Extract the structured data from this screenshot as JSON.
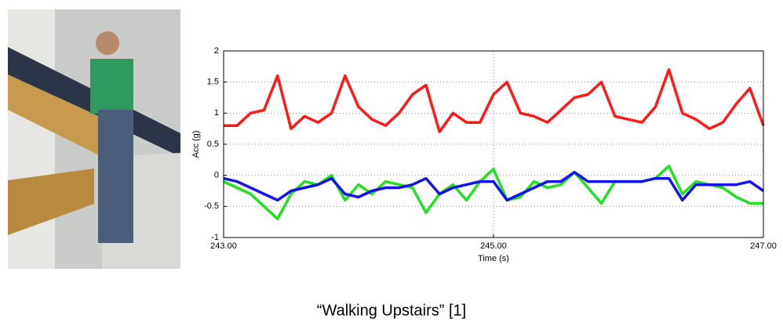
{
  "caption": "“Walking Upstairs” [1]",
  "chart_data": {
    "type": "line",
    "xlabel": "Time (s)",
    "ylabel": "Acc (g)",
    "x": [
      243.0,
      243.1,
      243.2,
      243.3,
      243.4,
      243.5,
      243.6,
      243.7,
      243.8,
      243.9,
      244.0,
      244.1,
      244.2,
      244.3,
      244.4,
      244.5,
      244.6,
      244.7,
      244.8,
      244.9,
      245.0,
      245.1,
      245.2,
      245.3,
      245.4,
      245.5,
      245.6,
      245.7,
      245.8,
      245.9,
      246.0,
      246.1,
      246.2,
      246.3,
      246.4,
      246.5,
      246.6,
      246.7,
      246.8,
      246.9,
      247.0
    ],
    "series": [
      {
        "color": "#ff1a1a",
        "values": [
          0.8,
          0.8,
          1.0,
          1.05,
          1.6,
          0.75,
          0.95,
          0.85,
          1.0,
          1.6,
          1.1,
          0.9,
          0.8,
          1.0,
          1.3,
          1.45,
          0.7,
          1.0,
          0.85,
          0.85,
          1.3,
          1.5,
          1.0,
          0.95,
          0.85,
          1.05,
          1.25,
          1.3,
          1.5,
          0.95,
          0.9,
          0.85,
          1.1,
          1.7,
          1.0,
          0.9,
          0.75,
          0.85,
          1.15,
          1.4,
          0.8
        ]
      },
      {
        "color": "#22e022",
        "values": [
          -0.1,
          -0.2,
          -0.3,
          -0.5,
          -0.7,
          -0.3,
          -0.1,
          -0.15,
          0.0,
          -0.4,
          -0.15,
          -0.3,
          -0.1,
          -0.15,
          -0.2,
          -0.6,
          -0.3,
          -0.15,
          -0.4,
          -0.1,
          0.1,
          -0.4,
          -0.35,
          -0.1,
          -0.2,
          -0.15,
          0.05,
          -0.2,
          -0.45,
          -0.1,
          -0.1,
          -0.1,
          -0.05,
          0.15,
          -0.3,
          -0.1,
          -0.15,
          -0.2,
          -0.35,
          -0.45,
          -0.45
        ]
      },
      {
        "color": "#1414e6",
        "values": [
          -0.05,
          -0.1,
          -0.2,
          -0.3,
          -0.4,
          -0.25,
          -0.2,
          -0.15,
          -0.05,
          -0.3,
          -0.35,
          -0.25,
          -0.2,
          -0.2,
          -0.15,
          -0.05,
          -0.3,
          -0.2,
          -0.15,
          -0.1,
          -0.1,
          -0.4,
          -0.3,
          -0.2,
          -0.1,
          -0.1,
          0.05,
          -0.1,
          -0.1,
          -0.1,
          -0.1,
          -0.1,
          -0.05,
          -0.05,
          -0.4,
          -0.15,
          -0.15,
          -0.15,
          -0.15,
          -0.1,
          -0.25
        ]
      }
    ],
    "xlim": [
      243,
      247
    ],
    "xticks": [
      {
        "value": 243,
        "label": "243.00"
      },
      {
        "value": 245,
        "label": "245.00"
      },
      {
        "value": 247,
        "label": "247.00"
      }
    ],
    "ylim": [
      -1,
      2
    ],
    "yticks": [
      -1,
      -0.5,
      0,
      0.5,
      1,
      1.5,
      2
    ],
    "grid": true
  }
}
